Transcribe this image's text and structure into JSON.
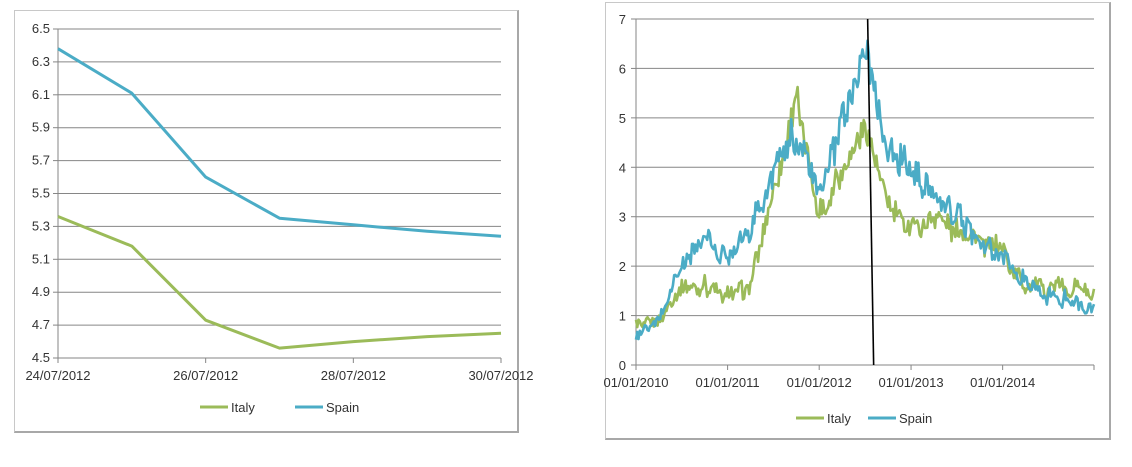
{
  "colors": {
    "italy": "#9bbb59",
    "spain": "#4bacc6",
    "grid": "#868686",
    "axis": "#868686",
    "marker": "#000000"
  },
  "chart_data": [
    {
      "type": "line",
      "title": "",
      "xlabel": "",
      "ylabel": "",
      "x": [
        "24/07/2012",
        "25/07/2012",
        "26/07/2012",
        "27/07/2012",
        "28/07/2012",
        "29/07/2012",
        "30/07/2012"
      ],
      "x_tick_labels": [
        "24/07/2012",
        "26/07/2012",
        "28/07/2012",
        "30/07/2012"
      ],
      "ylim": [
        4.5,
        6.5
      ],
      "y_ticks": [
        "4.5",
        "4.7",
        "4.9",
        "5.1",
        "5.3",
        "5.5",
        "5.7",
        "5.9",
        "6.1",
        "6.3",
        "6.5"
      ],
      "grid": true,
      "legend": "bottom",
      "series": [
        {
          "name": "Italy",
          "color": "italy",
          "values": [
            5.36,
            5.18,
            4.73,
            4.56,
            4.6,
            4.63,
            4.65
          ]
        },
        {
          "name": "Spain",
          "color": "spain",
          "values": [
            6.38,
            6.11,
            5.6,
            5.35,
            5.31,
            5.27,
            5.24
          ]
        }
      ]
    },
    {
      "type": "line",
      "title": "",
      "xlabel": "",
      "ylabel": "",
      "x": [
        "01/01/2010",
        "01/04/2010",
        "01/07/2010",
        "01/10/2010",
        "01/01/2011",
        "01/04/2011",
        "01/07/2011",
        "01/10/2011",
        "01/01/2012",
        "01/04/2012",
        "01/07/2012",
        "01/10/2012",
        "01/01/2013",
        "01/04/2013",
        "01/07/2013",
        "01/10/2013",
        "01/01/2014",
        "01/04/2014",
        "01/07/2014",
        "01/10/2014",
        "31/12/2014"
      ],
      "x_tick_labels": [
        "01/01/2010",
        "01/01/2011",
        "01/01/2012",
        "01/01/2013",
        "01/01/2014"
      ],
      "xlim": [
        "01/01/2010",
        "31/12/2014"
      ],
      "ylim": [
        0,
        7
      ],
      "y_ticks": [
        "0",
        "1",
        "2",
        "3",
        "4",
        "5",
        "6",
        "7"
      ],
      "grid": true,
      "legend": "bottom",
      "vertical_marker": "24/07/2012",
      "series": [
        {
          "name": "Italy",
          "color": "italy",
          "values": [
            0.8,
            0.85,
            1.5,
            1.6,
            1.4,
            1.6,
            3.5,
            5.5,
            3.0,
            4.0,
            4.8,
            3.3,
            2.8,
            3.0,
            2.7,
            2.5,
            2.3,
            1.6,
            1.5,
            1.6,
            1.4
          ]
        },
        {
          "name": "Spain",
          "color": "spain",
          "values": [
            0.6,
            0.9,
            2.1,
            2.5,
            2.2,
            2.7,
            3.9,
            4.7,
            3.4,
            4.9,
            6.4,
            4.3,
            3.9,
            3.4,
            3.0,
            2.6,
            2.1,
            1.7,
            1.4,
            1.3,
            1.1
          ]
        }
      ]
    }
  ]
}
